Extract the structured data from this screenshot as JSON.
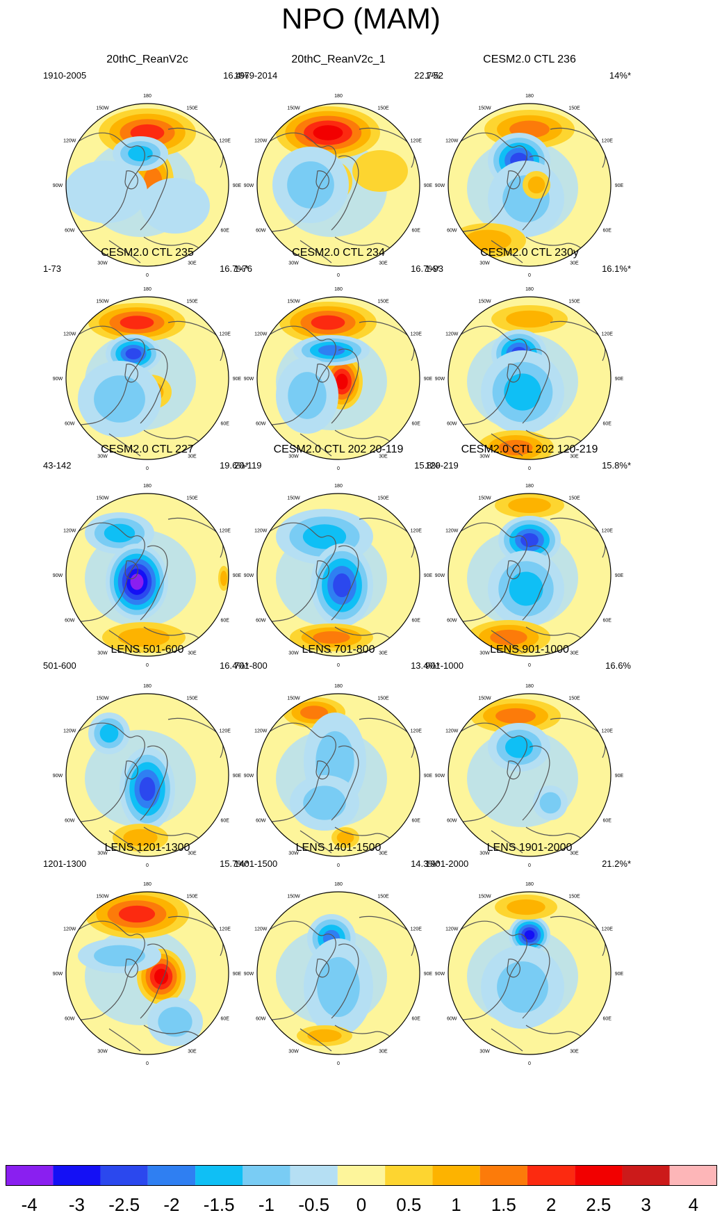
{
  "title": "NPO (MAM)",
  "chart_data": {
    "type": "polar-map-panels",
    "title": "NPO (MAM)",
    "variable": "NPO pattern (MAM)",
    "lon_labels": {
      "top": "180",
      "bottom": "0",
      "left": [
        "150W",
        "120W",
        "90W",
        "60W",
        "30W"
      ],
      "right": [
        "150E",
        "120E",
        "90E",
        "60E",
        "30E"
      ]
    },
    "colorbar": {
      "ticks": [
        "-4",
        "-3",
        "-2.5",
        "-2",
        "-1.5",
        "-1",
        "-0.5",
        "0",
        "0.5",
        "1",
        "1.5",
        "2",
        "2.5",
        "3",
        "4"
      ],
      "colors": [
        "#8a1ff0",
        "#1410f5",
        "#2b48ee",
        "#2f7ff2",
        "#0fbff5",
        "#79ccf4",
        "#b5dff3",
        "#fdf59b",
        "#fdd530",
        "#fdb300",
        "#fc7b0a",
        "#fc2a10",
        "#f20000",
        "#cc1a1a",
        "#fdb6b8"
      ]
    },
    "panels": [
      {
        "title": "20thC_ReanV2c",
        "period": "1910-2005",
        "variance": "16.4%"
      },
      {
        "title": "20thC_ReanV2c_1",
        "period": "1979-2014",
        "variance": "22.7%"
      },
      {
        "title": "CESM2.0 CTL 236",
        "period": "1-52",
        "variance": "14%*"
      },
      {
        "title": "CESM2.0 CTL 235",
        "period": "1-73",
        "variance": "16.7%*"
      },
      {
        "title": "CESM2.0 CTL 234",
        "period": "1-76",
        "variance": "16.7%*"
      },
      {
        "title": "CESM2.0 CTL 230y",
        "period": "1-93",
        "variance": "16.1%*"
      },
      {
        "title": "CESM2.0 CTL 227",
        "period": "43-142",
        "variance": "19.6%*"
      },
      {
        "title": "CESM2.0 CTL 202 20-119",
        "period": "20-119",
        "variance": "15.8%"
      },
      {
        "title": "CESM2.0 CTL 202 120-219",
        "period": "120-219",
        "variance": "15.8%*"
      },
      {
        "title": "LENS 501-600",
        "period": "501-600",
        "variance": "16.4%*"
      },
      {
        "title": "LENS 701-800",
        "period": "701-800",
        "variance": "13.4%*"
      },
      {
        "title": "LENS 901-1000",
        "period": "901-1000",
        "variance": "16.6%"
      },
      {
        "title": "LENS 1201-1300",
        "period": "1201-1300",
        "variance": "15.7%*"
      },
      {
        "title": "LENS 1401-1500",
        "period": "1401-1500",
        "variance": "14.3%*"
      },
      {
        "title": "LENS 1901-2000",
        "period": "1901-2000",
        "variance": "21.2%*"
      }
    ]
  }
}
